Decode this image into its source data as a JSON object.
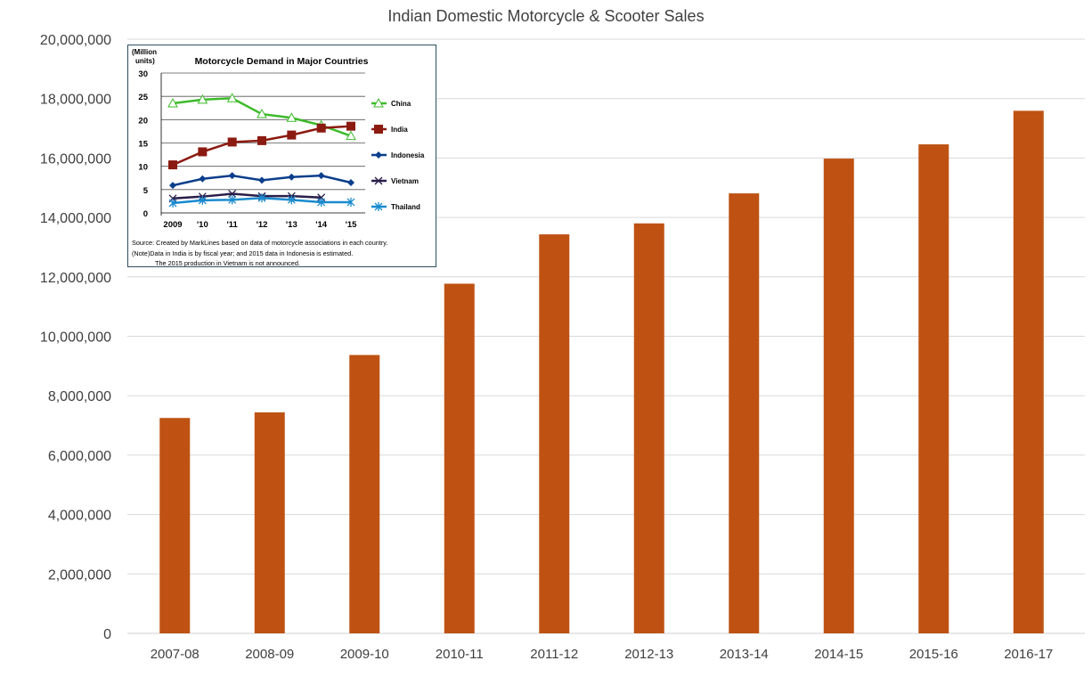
{
  "chart_data": [
    {
      "type": "bar",
      "title": "Indian Domestic Motorcycle & Scooter Sales",
      "xlabel": "",
      "ylabel": "",
      "categories": [
        "2007-08",
        "2008-09",
        "2009-10",
        "2010-11",
        "2011-12",
        "2012-13",
        "2013-14",
        "2014-15",
        "2015-16",
        "2016-17"
      ],
      "values": [
        7250000,
        7440000,
        9370000,
        11770000,
        13430000,
        13800000,
        14810000,
        15980000,
        16460000,
        17590000
      ],
      "ylim": [
        0,
        20000000
      ],
      "yticks": [
        "0",
        "2,000,000",
        "4,000,000",
        "6,000,000",
        "8,000,000",
        "10,000,000",
        "12,000,000",
        "14,000,000",
        "16,000,000",
        "18,000,000",
        "20,000,000"
      ],
      "grid": true,
      "bar_color": "#C0504D",
      "fill": "#BF5213"
    },
    {
      "type": "line",
      "title": "Motorcycle Demand in Major Countries",
      "ylabel": "(Million units)",
      "categories": [
        "2009",
        "'10",
        "'11",
        "'12",
        "'13",
        "'14",
        "'15"
      ],
      "ylim": [
        0,
        30
      ],
      "yticks": [
        "0",
        "5",
        "10",
        "15",
        "20",
        "25",
        "30"
      ],
      "grid": true,
      "legend": "right",
      "series": [
        {
          "name": "China",
          "color": "#3DBB2A",
          "marker": "triangle",
          "values": [
            23.5,
            24.3,
            24.6,
            21.2,
            20.4,
            18.8,
            16.5
          ]
        },
        {
          "name": "India",
          "color": "#8B1A10",
          "marker": "square",
          "values": [
            10.3,
            13.1,
            15.2,
            15.5,
            16.7,
            18.2,
            18.6
          ]
        },
        {
          "name": "Indonesia",
          "color": "#0B3E8C",
          "marker": "diamond",
          "values": [
            5.9,
            7.3,
            8.0,
            7.0,
            7.7,
            8.0,
            6.5
          ]
        },
        {
          "name": "Vietnam",
          "color": "#2A1E4A",
          "marker": "x",
          "values": [
            3.1,
            3.5,
            4.1,
            3.6,
            3.6,
            3.3,
            null
          ]
        },
        {
          "name": "Thailand",
          "color": "#1A8BD0",
          "marker": "star",
          "values": [
            2.1,
            2.7,
            2.8,
            3.2,
            2.8,
            2.3,
            2.3
          ]
        }
      ],
      "notes": [
        "Source: Created by  MarkLines  based on data of motorcycle associations in each country.",
        "(Note)Data in India is  by fiscal year; and   2015 data in  Indonesia is estimated.",
        "The 2015  production in Vietnam is not announced."
      ]
    }
  ]
}
